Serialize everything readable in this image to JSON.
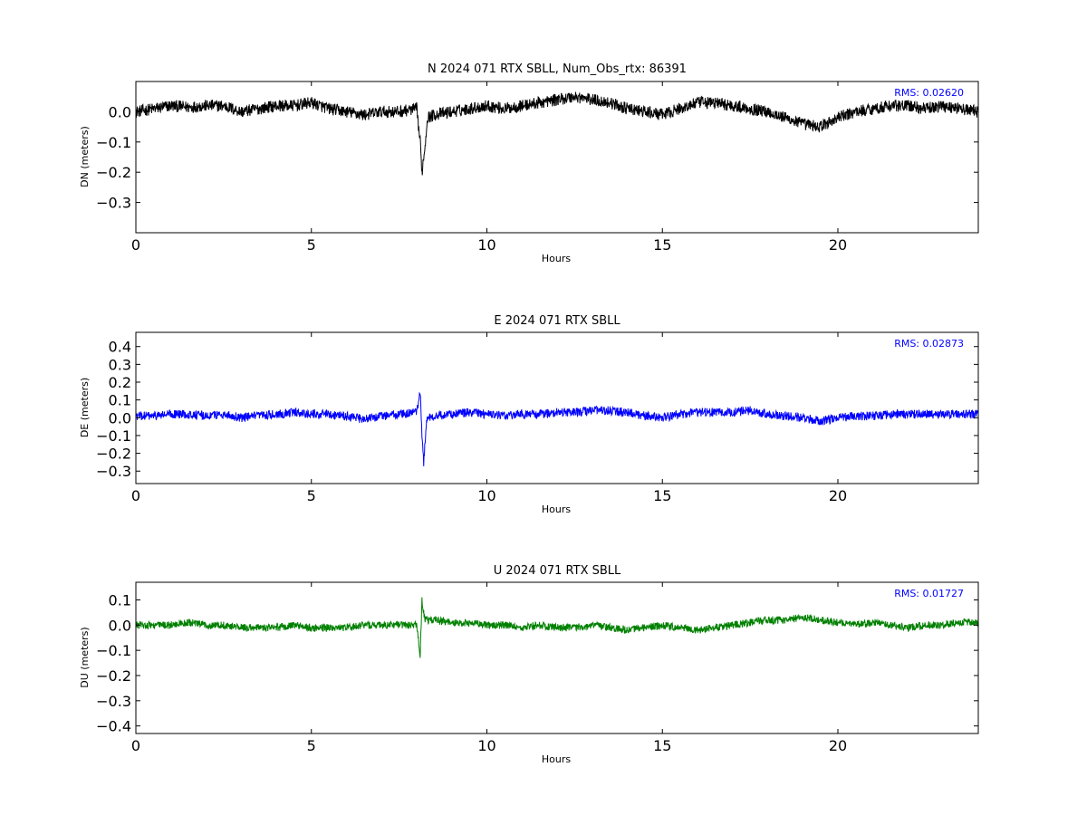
{
  "chart_data": [
    {
      "type": "line",
      "title": "N 2024 071 RTX  SBLL, Num_Obs_rtx: 86391",
      "xlabel": "Hours",
      "ylabel": "DN (meters)",
      "xlim": [
        0,
        24
      ],
      "ylim": [
        -0.4,
        0.1
      ],
      "xticks": [
        0,
        5,
        10,
        15,
        20
      ],
      "xtick_labels": [
        "0",
        "5",
        "10",
        "15",
        "20"
      ],
      "yticks": [
        0.0,
        -0.1,
        -0.2,
        -0.3
      ],
      "ytick_labels": [
        "0.0",
        "−0.1",
        "−0.2",
        "−0.3"
      ],
      "rms_label": "RMS:  0.02620",
      "series_color": "#000000",
      "series": [
        {
          "x": [
            0,
            0.5,
            1.0,
            1.5,
            2.0,
            2.5,
            3.0,
            3.5,
            4.0,
            4.5,
            5.0,
            5.5,
            6.0,
            6.5,
            7.0,
            7.5,
            8.0,
            8.1,
            8.15,
            8.2,
            8.25,
            8.3,
            8.5,
            9.0,
            9.5,
            10.0,
            10.5,
            11.0,
            11.5,
            12.0,
            12.5,
            13.0,
            13.5,
            14.0,
            14.5,
            15.0,
            15.5,
            16.0,
            16.5,
            17.0,
            17.5,
            18.0,
            18.5,
            19.0,
            19.5,
            20.0,
            20.5,
            21.0,
            21.5,
            22.0,
            22.5,
            23.0,
            23.5,
            24.0
          ],
          "values": [
            0.0,
            0.01,
            0.02,
            0.015,
            0.02,
            0.02,
            0.0,
            0.01,
            0.02,
            0.02,
            0.03,
            0.01,
            0.0,
            -0.01,
            0.0,
            0.0,
            0.01,
            -0.1,
            -0.2,
            -0.15,
            -0.1,
            -0.02,
            -0.01,
            0.0,
            0.01,
            0.02,
            0.01,
            0.02,
            0.03,
            0.04,
            0.05,
            0.04,
            0.03,
            0.01,
            0.0,
            -0.01,
            0.01,
            0.03,
            0.03,
            0.02,
            0.01,
            0.0,
            -0.02,
            -0.04,
            -0.05,
            -0.02,
            0.0,
            0.01,
            0.02,
            0.02,
            0.01,
            0.02,
            0.01,
            0.0
          ],
          "noise": 0.02
        }
      ]
    },
    {
      "type": "line",
      "title": "E 2024 071 RTX  SBLL",
      "xlabel": "Hours",
      "ylabel": "DE (meters)",
      "xlim": [
        0,
        24
      ],
      "ylim": [
        -0.37,
        0.48
      ],
      "xticks": [
        0,
        5,
        10,
        15,
        20
      ],
      "xtick_labels": [
        "0",
        "5",
        "10",
        "15",
        "20"
      ],
      "yticks": [
        0.4,
        0.3,
        0.2,
        0.1,
        0.0,
        -0.1,
        -0.2,
        -0.3
      ],
      "ytick_labels": [
        "0.4",
        "0.3",
        "0.2",
        "0.1",
        "0.0",
        "−0.1",
        "−0.2",
        "−0.3"
      ],
      "rms_label": "RMS:  0.02873",
      "series_color": "#0000ff",
      "series": [
        {
          "x": [
            0,
            0.5,
            1.0,
            1.5,
            2.0,
            2.5,
            3.0,
            3.5,
            4.0,
            4.5,
            5.0,
            5.5,
            6.0,
            6.5,
            7.0,
            7.5,
            8.0,
            8.1,
            8.15,
            8.2,
            8.25,
            8.3,
            8.5,
            9.0,
            9.5,
            10.0,
            10.5,
            11.0,
            11.5,
            12.0,
            12.5,
            13.0,
            13.5,
            14.0,
            14.5,
            15.0,
            15.5,
            16.0,
            16.5,
            17.0,
            17.5,
            18.0,
            18.5,
            19.0,
            19.5,
            20.0,
            20.5,
            21.0,
            21.5,
            22.0,
            22.5,
            23.0,
            23.5,
            24.0
          ],
          "values": [
            0.01,
            0.01,
            0.02,
            0.02,
            0.01,
            0.02,
            0.0,
            0.01,
            0.02,
            0.03,
            0.02,
            0.02,
            0.01,
            -0.01,
            0.01,
            0.02,
            0.03,
            0.15,
            -0.1,
            -0.25,
            -0.1,
            0.0,
            0.01,
            0.02,
            0.03,
            0.02,
            0.01,
            0.02,
            0.02,
            0.03,
            0.03,
            0.04,
            0.04,
            0.03,
            0.01,
            0.0,
            0.02,
            0.03,
            0.03,
            0.03,
            0.04,
            0.02,
            0.01,
            0.0,
            -0.02,
            0.0,
            0.01,
            0.01,
            0.02,
            0.02,
            0.02,
            0.02,
            0.02,
            0.02
          ],
          "noise": 0.025
        }
      ]
    },
    {
      "type": "line",
      "title": "U 2024 071 RTX  SBLL",
      "xlabel": "Hours",
      "ylabel": "DU (meters)",
      "xlim": [
        0,
        24
      ],
      "ylim": [
        -0.43,
        0.17
      ],
      "xticks": [
        0,
        5,
        10,
        15,
        20
      ],
      "xtick_labels": [
        "0",
        "5",
        "10",
        "15",
        "20"
      ],
      "yticks": [
        0.1,
        0.0,
        -0.1,
        -0.2,
        -0.3,
        -0.4
      ],
      "ytick_labels": [
        "0.1",
        "0.0",
        "−0.1",
        "−0.2",
        "−0.3",
        "−0.4"
      ],
      "rms_label": "RMS:  0.01727",
      "series_color": "#008000",
      "series": [
        {
          "x": [
            0,
            0.5,
            1.0,
            1.5,
            2.0,
            2.5,
            3.0,
            3.5,
            4.0,
            4.5,
            5.0,
            5.5,
            6.0,
            6.5,
            7.0,
            7.5,
            8.0,
            8.1,
            8.15,
            8.2,
            8.25,
            8.3,
            8.5,
            9.0,
            9.5,
            10.0,
            10.5,
            11.0,
            11.5,
            12.0,
            12.5,
            13.0,
            13.5,
            14.0,
            14.5,
            15.0,
            15.5,
            16.0,
            16.5,
            17.0,
            17.5,
            18.0,
            18.5,
            19.0,
            19.5,
            20.0,
            20.5,
            21.0,
            21.5,
            22.0,
            22.5,
            23.0,
            23.5,
            24.0
          ],
          "values": [
            0.0,
            0.0,
            0.0,
            0.01,
            0.0,
            0.0,
            -0.01,
            -0.01,
            -0.01,
            0.0,
            -0.01,
            -0.01,
            -0.01,
            0.0,
            0.0,
            0.0,
            0.0,
            -0.12,
            0.1,
            0.05,
            0.02,
            0.02,
            0.02,
            0.01,
            0.01,
            0.0,
            0.0,
            -0.01,
            0.0,
            -0.01,
            -0.01,
            0.0,
            -0.01,
            -0.02,
            -0.01,
            0.0,
            -0.01,
            -0.02,
            -0.01,
            0.0,
            0.01,
            0.02,
            0.02,
            0.03,
            0.02,
            0.01,
            0.0,
            0.01,
            0.0,
            -0.01,
            0.0,
            0.0,
            0.01,
            0.01
          ],
          "noise": 0.015
        }
      ]
    }
  ]
}
